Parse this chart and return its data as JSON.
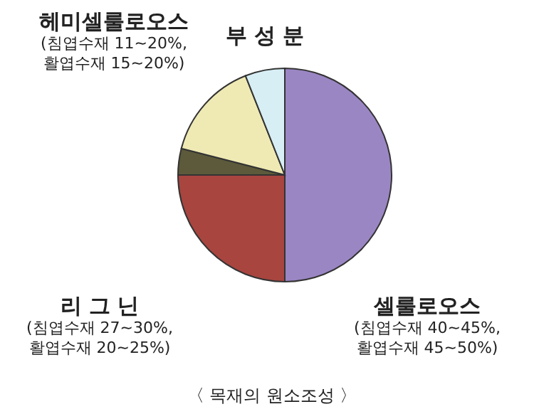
{
  "chart_data": {
    "type": "pie",
    "title": "〈 목재의 원소조성 〉",
    "categories": [
      "셀룰로오스\n(침엽수재 40~45%,\n활엽수재 45~50%)",
      "리 그 닌\n(침엽수재 27~30%,\n활엽수재 20~25%)",
      null,
      "헤미셀룰로오스\n(침엽수재 11~20%,\n활엽수재 15~20%)",
      "부 성 분"
    ],
    "values": [
      50,
      25,
      4,
      15,
      6
    ],
    "colors": [
      "#9b86c4",
      "#a8453f",
      "#5c5a3a",
      "#efeab4",
      "#d7eef5"
    ]
  }
}
